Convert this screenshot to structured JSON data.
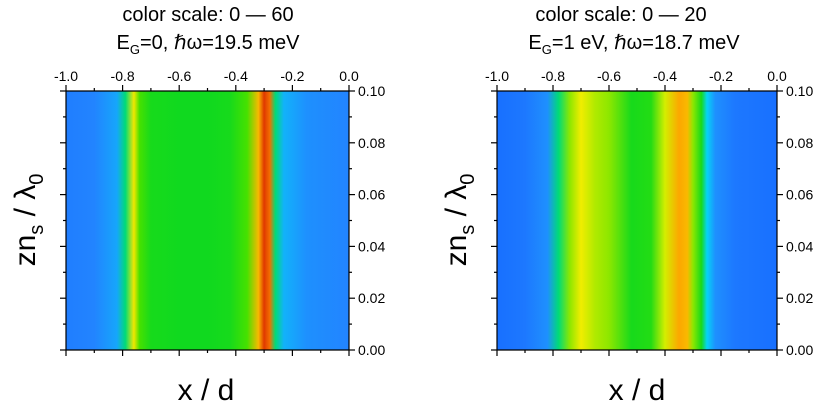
{
  "chart_data": [
    {
      "type": "heatmap",
      "title_line1": "color scale: 0 — 60",
      "title_line2_prefix": "E",
      "title_line2_sub": "G",
      "title_line2_rest": "=0, ℏω=19.5 meV",
      "xlabel": "x / d",
      "ylabel_main": "zn",
      "ylabel_sub": "s",
      "ylabel_rest": " / λ",
      "ylabel_sub2": "0",
      "xlim": [
        -1.0,
        0.0
      ],
      "ylim": [
        0.0,
        0.1
      ],
      "xticks": [
        -1.0,
        -0.8,
        -0.6,
        -0.4,
        -0.2,
        0.0
      ],
      "xtick_labels": [
        "-1.0",
        "-0.8",
        "-0.6",
        "-0.4",
        "-0.2",
        "0.0"
      ],
      "yticks": [
        0.0,
        0.02,
        0.04,
        0.06,
        0.08,
        0.1
      ],
      "ytick_labels": [
        "0.00",
        "0.02",
        "0.04",
        "0.06",
        "0.08",
        "0.10"
      ],
      "color_scale": [
        0,
        60
      ],
      "x": [
        -1.0,
        -0.9,
        -0.82,
        -0.79,
        -0.76,
        -0.74,
        -0.7,
        -0.6,
        -0.5,
        -0.42,
        -0.36,
        -0.32,
        -0.3,
        -0.28,
        -0.26,
        -0.23,
        -0.15,
        0.0
      ],
      "intensity": [
        10,
        11,
        14,
        24,
        44,
        36,
        30,
        29,
        29,
        30,
        36,
        48,
        58,
        54,
        24,
        15,
        12,
        11
      ]
    },
    {
      "type": "heatmap",
      "title_line1": "color scale: 0 — 20",
      "title_line2_prefix": "E",
      "title_line2_sub": "G",
      "title_line2_rest": "=1 eV, ℏω=18.7 meV",
      "xlabel": "x / d",
      "ylabel_main": "zn",
      "ylabel_sub": "s",
      "ylabel_rest": " / λ",
      "ylabel_sub2": "0",
      "xlim": [
        -1.0,
        0.0
      ],
      "ylim": [
        0.0,
        0.1
      ],
      "xticks": [
        -1.0,
        -0.8,
        -0.6,
        -0.4,
        -0.2,
        0.0
      ],
      "xtick_labels": [
        "-1.0",
        "-0.8",
        "-0.6",
        "-0.4",
        "-0.2",
        "0.0"
      ],
      "yticks": [
        0.0,
        0.02,
        0.04,
        0.06,
        0.08,
        0.1
      ],
      "ytick_labels": [
        "0.00",
        "0.02",
        "0.04",
        "0.06",
        "0.08",
        "0.10"
      ],
      "color_scale": [
        0,
        20
      ],
      "x": [
        -1.0,
        -0.9,
        -0.82,
        -0.78,
        -0.74,
        -0.7,
        -0.65,
        -0.6,
        -0.52,
        -0.45,
        -0.4,
        -0.35,
        -0.32,
        -0.3,
        -0.27,
        -0.25,
        -0.22,
        -0.15,
        0.0
      ],
      "intensity": [
        2.5,
        3,
        4,
        8,
        13,
        14.5,
        13.5,
        13,
        10,
        10.5,
        14,
        16.5,
        16,
        13,
        10,
        6,
        4,
        3,
        2.5
      ]
    }
  ]
}
